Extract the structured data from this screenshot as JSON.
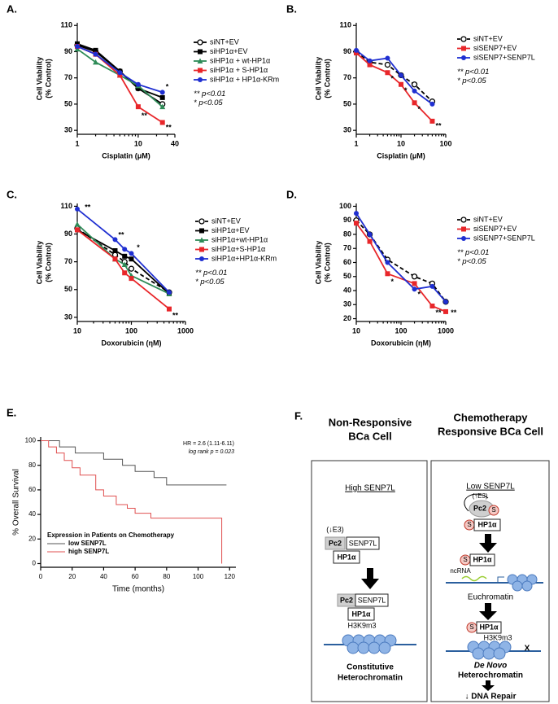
{
  "chart_data": [
    {
      "type": "line",
      "label": "A.",
      "xscale": "log",
      "xlabel": "Cisplatin (μM)",
      "ylabel": [
        "Cell Viability",
        "(% Control)"
      ],
      "x": [
        1,
        2,
        5,
        10,
        25
      ],
      "xlim": [
        1,
        40
      ],
      "xticks": [
        1,
        10,
        40
      ],
      "ylim": [
        27,
        112
      ],
      "yticks": [
        30,
        50,
        70,
        90,
        110
      ],
      "series": [
        {
          "name": "siNT+EV",
          "color": "#000000",
          "marker": "circle-open",
          "values": [
            95,
            90,
            75,
            62,
            50
          ]
        },
        {
          "name": "siHP1α+EV",
          "color": "#000000",
          "marker": "square",
          "values": [
            96,
            91,
            75,
            62,
            55
          ]
        },
        {
          "name": "siHP1α + wt-HP1α",
          "color": "#2e8b57",
          "marker": "triangle",
          "values": [
            92,
            82,
            72,
            64,
            48
          ]
        },
        {
          "name": "siHP1α + S-HP1α",
          "color": "#e8262a",
          "marker": "square",
          "values": [
            94,
            88,
            72,
            48,
            36
          ]
        },
        {
          "name": "siHP1α + HP1α-KRm",
          "color": "#1f2fd1",
          "marker": "circle",
          "values": [
            94,
            88,
            74,
            65,
            59
          ]
        }
      ],
      "annotations": [
        {
          "x": 25,
          "y": 63,
          "text": "*"
        },
        {
          "x": 10,
          "y": 41,
          "text": "**"
        },
        {
          "x": 25,
          "y": 32,
          "text": "**"
        }
      ],
      "notes": [
        "** p<0.01",
        " * p<0.05"
      ]
    },
    {
      "type": "line",
      "label": "B.",
      "xscale": "log",
      "xlabel": "Cisplatin (μM)",
      "ylabel": [
        "Cell Viability",
        "(% Control)"
      ],
      "x": [
        1,
        2,
        5,
        10,
        20,
        50
      ],
      "xlim": [
        1,
        100
      ],
      "xticks": [
        1,
        10,
        100
      ],
      "ylim": [
        27,
        112
      ],
      "yticks": [
        30,
        50,
        70,
        90,
        110
      ],
      "series": [
        {
          "name": "siNT+EV",
          "color": "#000000",
          "marker": "circle-open",
          "dash": true,
          "values": [
            90,
            82,
            80,
            72,
            65,
            52
          ]
        },
        {
          "name": "siSENP7+EV",
          "color": "#e8262a",
          "marker": "square",
          "values": [
            89,
            80,
            74,
            65,
            51,
            37
          ]
        },
        {
          "name": "siSENP7+SENP7L",
          "color": "#1f2fd1",
          "marker": "circle",
          "values": [
            91,
            83,
            85,
            72,
            60,
            50
          ]
        }
      ],
      "annotations": [
        {
          "x": 5,
          "y": 69,
          "text": "*"
        },
        {
          "x": 10,
          "y": 60,
          "text": "*"
        },
        {
          "x": 20,
          "y": 46,
          "text": "*"
        },
        {
          "x": 50,
          "y": 33,
          "text": "**"
        }
      ],
      "notes": [
        "** p<0.01",
        " * p<0.05"
      ]
    },
    {
      "type": "line",
      "label": "C.",
      "xscale": "log",
      "xlabel": "Doxorubicin (ηM)",
      "ylabel": [
        "Cell Viability",
        "(% Control)"
      ],
      "x": [
        10,
        50,
        75,
        100,
        500
      ],
      "xlim": [
        10,
        1000
      ],
      "xticks": [
        10,
        100,
        1000
      ],
      "ylim": [
        27,
        112
      ],
      "yticks": [
        30,
        50,
        70,
        90,
        110
      ],
      "series": [
        {
          "name": "siNT+EV",
          "color": "#000000",
          "marker": "circle-open",
          "dash": true,
          "values": [
            94,
            75,
            70,
            65,
            48
          ]
        },
        {
          "name": "siHP1α+EV",
          "color": "#000000",
          "marker": "square",
          "values": [
            93,
            78,
            74,
            72,
            47
          ]
        },
        {
          "name": "siHP1α+wt-HP1α",
          "color": "#2e8b57",
          "marker": "triangle",
          "values": [
            97,
            72,
            68,
            60,
            47
          ]
        },
        {
          "name": "siHP1α+S-HP1α",
          "color": "#e8262a",
          "marker": "square",
          "values": [
            93,
            72,
            62,
            58,
            36
          ]
        },
        {
          "name": "siHP1α+HP1α-KRm",
          "color": "#1f2fd1",
          "marker": "circle",
          "values": [
            108,
            86,
            79,
            76,
            48
          ]
        }
      ],
      "annotations": [
        {
          "x": 12,
          "y": 109,
          "text": "**"
        },
        {
          "x": 50,
          "y": 89,
          "text": "**"
        },
        {
          "x": 110,
          "y": 80,
          "text": "*"
        },
        {
          "x": 500,
          "y": 31,
          "text": "**"
        }
      ],
      "notes": [
        "** p<0.01",
        " * p<0.05"
      ]
    },
    {
      "type": "line",
      "label": "D.",
      "xscale": "log",
      "xlabel": "Doxorubicin (ηM)",
      "ylabel": [
        "Cell Viability",
        "(% Control)"
      ],
      "x": [
        10,
        20,
        50,
        200,
        500,
        1000
      ],
      "xlim": [
        10,
        1000
      ],
      "xticks": [
        10,
        100,
        1000
      ],
      "ylim": [
        18,
        102
      ],
      "yticks": [
        20,
        30,
        40,
        50,
        60,
        70,
        80,
        90,
        100
      ],
      "series": [
        {
          "name": "siNT+EV",
          "color": "#000000",
          "marker": "circle-open",
          "dash": true,
          "values": [
            90,
            80,
            62,
            50,
            45,
            32
          ]
        },
        {
          "name": "siSENP7+EV",
          "color": "#e8262a",
          "marker": "square",
          "values": [
            88,
            75,
            52,
            45,
            29,
            25
          ]
        },
        {
          "name": "siSENP7+SENP7L",
          "color": "#1f2fd1",
          "marker": "circle",
          "values": [
            95,
            80,
            60,
            41,
            43,
            32
          ]
        }
      ],
      "annotations": [
        {
          "x": 50,
          "y": 46,
          "text": "*"
        },
        {
          "x": 200,
          "y": 37,
          "text": "*"
        },
        {
          "x": 500,
          "y": 24,
          "text": "**"
        },
        {
          "x": 1100,
          "y": 24,
          "text": "**"
        }
      ],
      "notes": [
        "** p<0.01",
        " * p<0.05"
      ]
    },
    {
      "type": "line",
      "label": "E.",
      "xlabel": "Time (months)",
      "ylabel": "% Overall Survival",
      "xlim": [
        0,
        124
      ],
      "xticks": [
        0,
        20,
        40,
        60,
        80,
        100,
        120
      ],
      "ylim": [
        -3,
        103
      ],
      "yticks": [
        0,
        20,
        40,
        60,
        80,
        100
      ],
      "legend_title": "Expression in Patients on Chemotherapy",
      "series": [
        {
          "name": "low SENP7L",
          "color": "#555555",
          "x": [
            0,
            12,
            12,
            22,
            22,
            40,
            40,
            52,
            52,
            60,
            60,
            72,
            72,
            80,
            80,
            118
          ],
          "values": [
            100,
            100,
            95,
            95,
            90,
            90,
            85,
            85,
            80,
            80,
            75,
            75,
            70,
            70,
            64,
            64
          ]
        },
        {
          "name": "high SENP7L",
          "color": "#e05050",
          "x": [
            0,
            5,
            5,
            10,
            10,
            15,
            15,
            20,
            20,
            25,
            25,
            35,
            35,
            40,
            40,
            48,
            48,
            55,
            55,
            60,
            60,
            70,
            70,
            115,
            115
          ],
          "values": [
            100,
            100,
            95,
            95,
            90,
            90,
            84,
            84,
            78,
            78,
            72,
            72,
            60,
            60,
            55,
            55,
            48,
            48,
            45,
            45,
            41,
            41,
            37,
            37,
            0
          ]
        }
      ],
      "notes": [
        "HR = 2.6 (1.11-6.11)",
        "log rank p = 0.023"
      ]
    }
  ],
  "diagram": {
    "label": "F.",
    "left": {
      "title": [
        "Non-Responsive",
        "BCa Cell"
      ],
      "state": "High SENP7L",
      "e3": "(↓E3)",
      "pc2": "Pc2",
      "senp7l": "SENP7L",
      "hp1": "HP1α",
      "mark": "H3K9m3",
      "result": [
        "Constitutive",
        "Heterochromatin"
      ]
    },
    "right": {
      "title": [
        "Chemotherapy",
        "Responsive BCa Cell"
      ],
      "state": "Low SENP7L",
      "e3": "(↑E3)",
      "pc2": "Pc2",
      "sumo": "S",
      "hp1": "HP1α",
      "rna": "ncRNA",
      "open": "Euchromatin",
      "mark": "H3K9m3",
      "block": "X",
      "result": [
        "De Novo",
        "Heterochromatin"
      ],
      "outcome": "↓ DNA Repair"
    }
  }
}
